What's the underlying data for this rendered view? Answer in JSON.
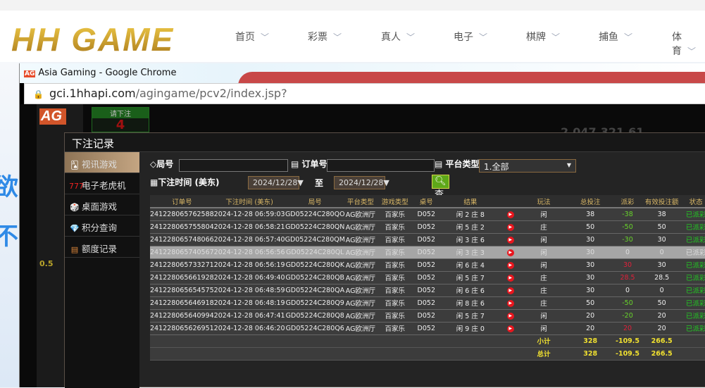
{
  "site": {
    "logo": "HH GAME",
    "nav": [
      "首页",
      "彩票",
      "真人",
      "电子",
      "棋牌",
      "捕鱼",
      "体育"
    ]
  },
  "browser": {
    "title": "Asia Gaming - Google Chrome",
    "url_domain": "gci.1hhapi.com",
    "url_path": "/agingame/pcv2/index.jsp?"
  },
  "game_bg": {
    "bet_prompt": "请下注",
    "countdown": "4",
    "balance_display": "2,047,321.61",
    "user_balance": "0.5"
  },
  "modal": {
    "title": "下注记录",
    "sidebar": [
      {
        "label": "视讯游戏",
        "icon": "cards-icon",
        "active": true
      },
      {
        "label": "电子老虎机",
        "icon": "slot-777-icon"
      },
      {
        "label": "桌面游戏",
        "icon": "dice-icon"
      },
      {
        "label": "积分查询",
        "icon": "diamond-icon"
      },
      {
        "label": "额度记录",
        "icon": "document-icon"
      }
    ],
    "filters": {
      "round_label": "局号",
      "round_value": "",
      "order_label": "订单号",
      "order_value": "",
      "platform_label": "平台类型",
      "platform_value": "1.全部",
      "time_label": "下注时间 (美东)",
      "date_from": "2024/12/28",
      "to_label": "至",
      "date_to": "2024/12/28",
      "query_label": "查询"
    },
    "columns": [
      "订单号",
      "下注时间 (美东)",
      "局号",
      "平台类型",
      "游戏类型",
      "桌号",
      "结果",
      "",
      "玩法",
      "总投注",
      "派彩",
      "有效投注额",
      "状态"
    ],
    "rows": [
      [
        "241228065762588",
        "2024-12-28 06:59:03",
        "GD05224C280QO",
        "AG欧洲厅",
        "百家乐",
        "D052",
        "闲 2 庄 8",
        "闲",
        "38",
        "-38",
        "38",
        "已派彩"
      ],
      [
        "241228065755804",
        "2024-12-28 06:58:21",
        "GD05224C280QN",
        "AG欧洲厅",
        "百家乐",
        "D052",
        "闲 5 庄 2",
        "庄",
        "50",
        "-50",
        "50",
        "已派彩"
      ],
      [
        "241228065748066",
        "2024-12-28 06:57:40",
        "GD05224C280QM",
        "AG欧洲厅",
        "百家乐",
        "D052",
        "闲 3 庄 6",
        "闲",
        "30",
        "-30",
        "30",
        "已派彩"
      ],
      [
        "241228065740567",
        "2024-12-28 06:56:56",
        "GD05224C280QL",
        "AG欧洲厅",
        "百家乐",
        "D052",
        "闲 3 庄 3",
        "闲",
        "30",
        "0",
        "0",
        "已派彩"
      ],
      [
        "241228065733271",
        "2024-12-28 06:56:19",
        "GD05224C280QK",
        "AG欧洲厅",
        "百家乐",
        "D052",
        "闲 6 庄 4",
        "闲",
        "30",
        "30",
        "30",
        "已派彩"
      ],
      [
        "241228065661928",
        "2024-12-28 06:49:40",
        "GD05224C280QB",
        "AG欧洲厅",
        "百家乐",
        "D052",
        "闲 5 庄 7",
        "庄",
        "30",
        "28.5",
        "28.5",
        "已派彩"
      ],
      [
        "241228065654575",
        "2024-12-28 06:48:59",
        "GD05224C280QA",
        "AG欧洲厅",
        "百家乐",
        "D052",
        "闲 6 庄 6",
        "庄",
        "30",
        "0",
        "0",
        "已派彩"
      ],
      [
        "241228065646918",
        "2024-12-28 06:48:19",
        "GD05224C280Q9",
        "AG欧洲厅",
        "百家乐",
        "D052",
        "闲 8 庄 6",
        "庄",
        "50",
        "-50",
        "50",
        "已派彩"
      ],
      [
        "241228065640994",
        "2024-12-28 06:47:41",
        "GD05224C280Q8",
        "AG欧洲厅",
        "百家乐",
        "D052",
        "闲 5 庄 7",
        "闲",
        "20",
        "-20",
        "20",
        "已派彩"
      ],
      [
        "241228065626951",
        "2024-12-28 06:46:20",
        "GD05224C280Q6",
        "AG欧洲厅",
        "百家乐",
        "D052",
        "闲 9 庄 0",
        "闲",
        "20",
        "20",
        "20",
        "已派彩"
      ]
    ],
    "subtotal": {
      "label": "小计",
      "total_bet": "328",
      "payout": "-109.5",
      "valid_bet": "266.5"
    },
    "total": {
      "label": "总计",
      "total_bet": "328",
      "payout": "-109.5",
      "valid_bet": "266.5"
    }
  }
}
